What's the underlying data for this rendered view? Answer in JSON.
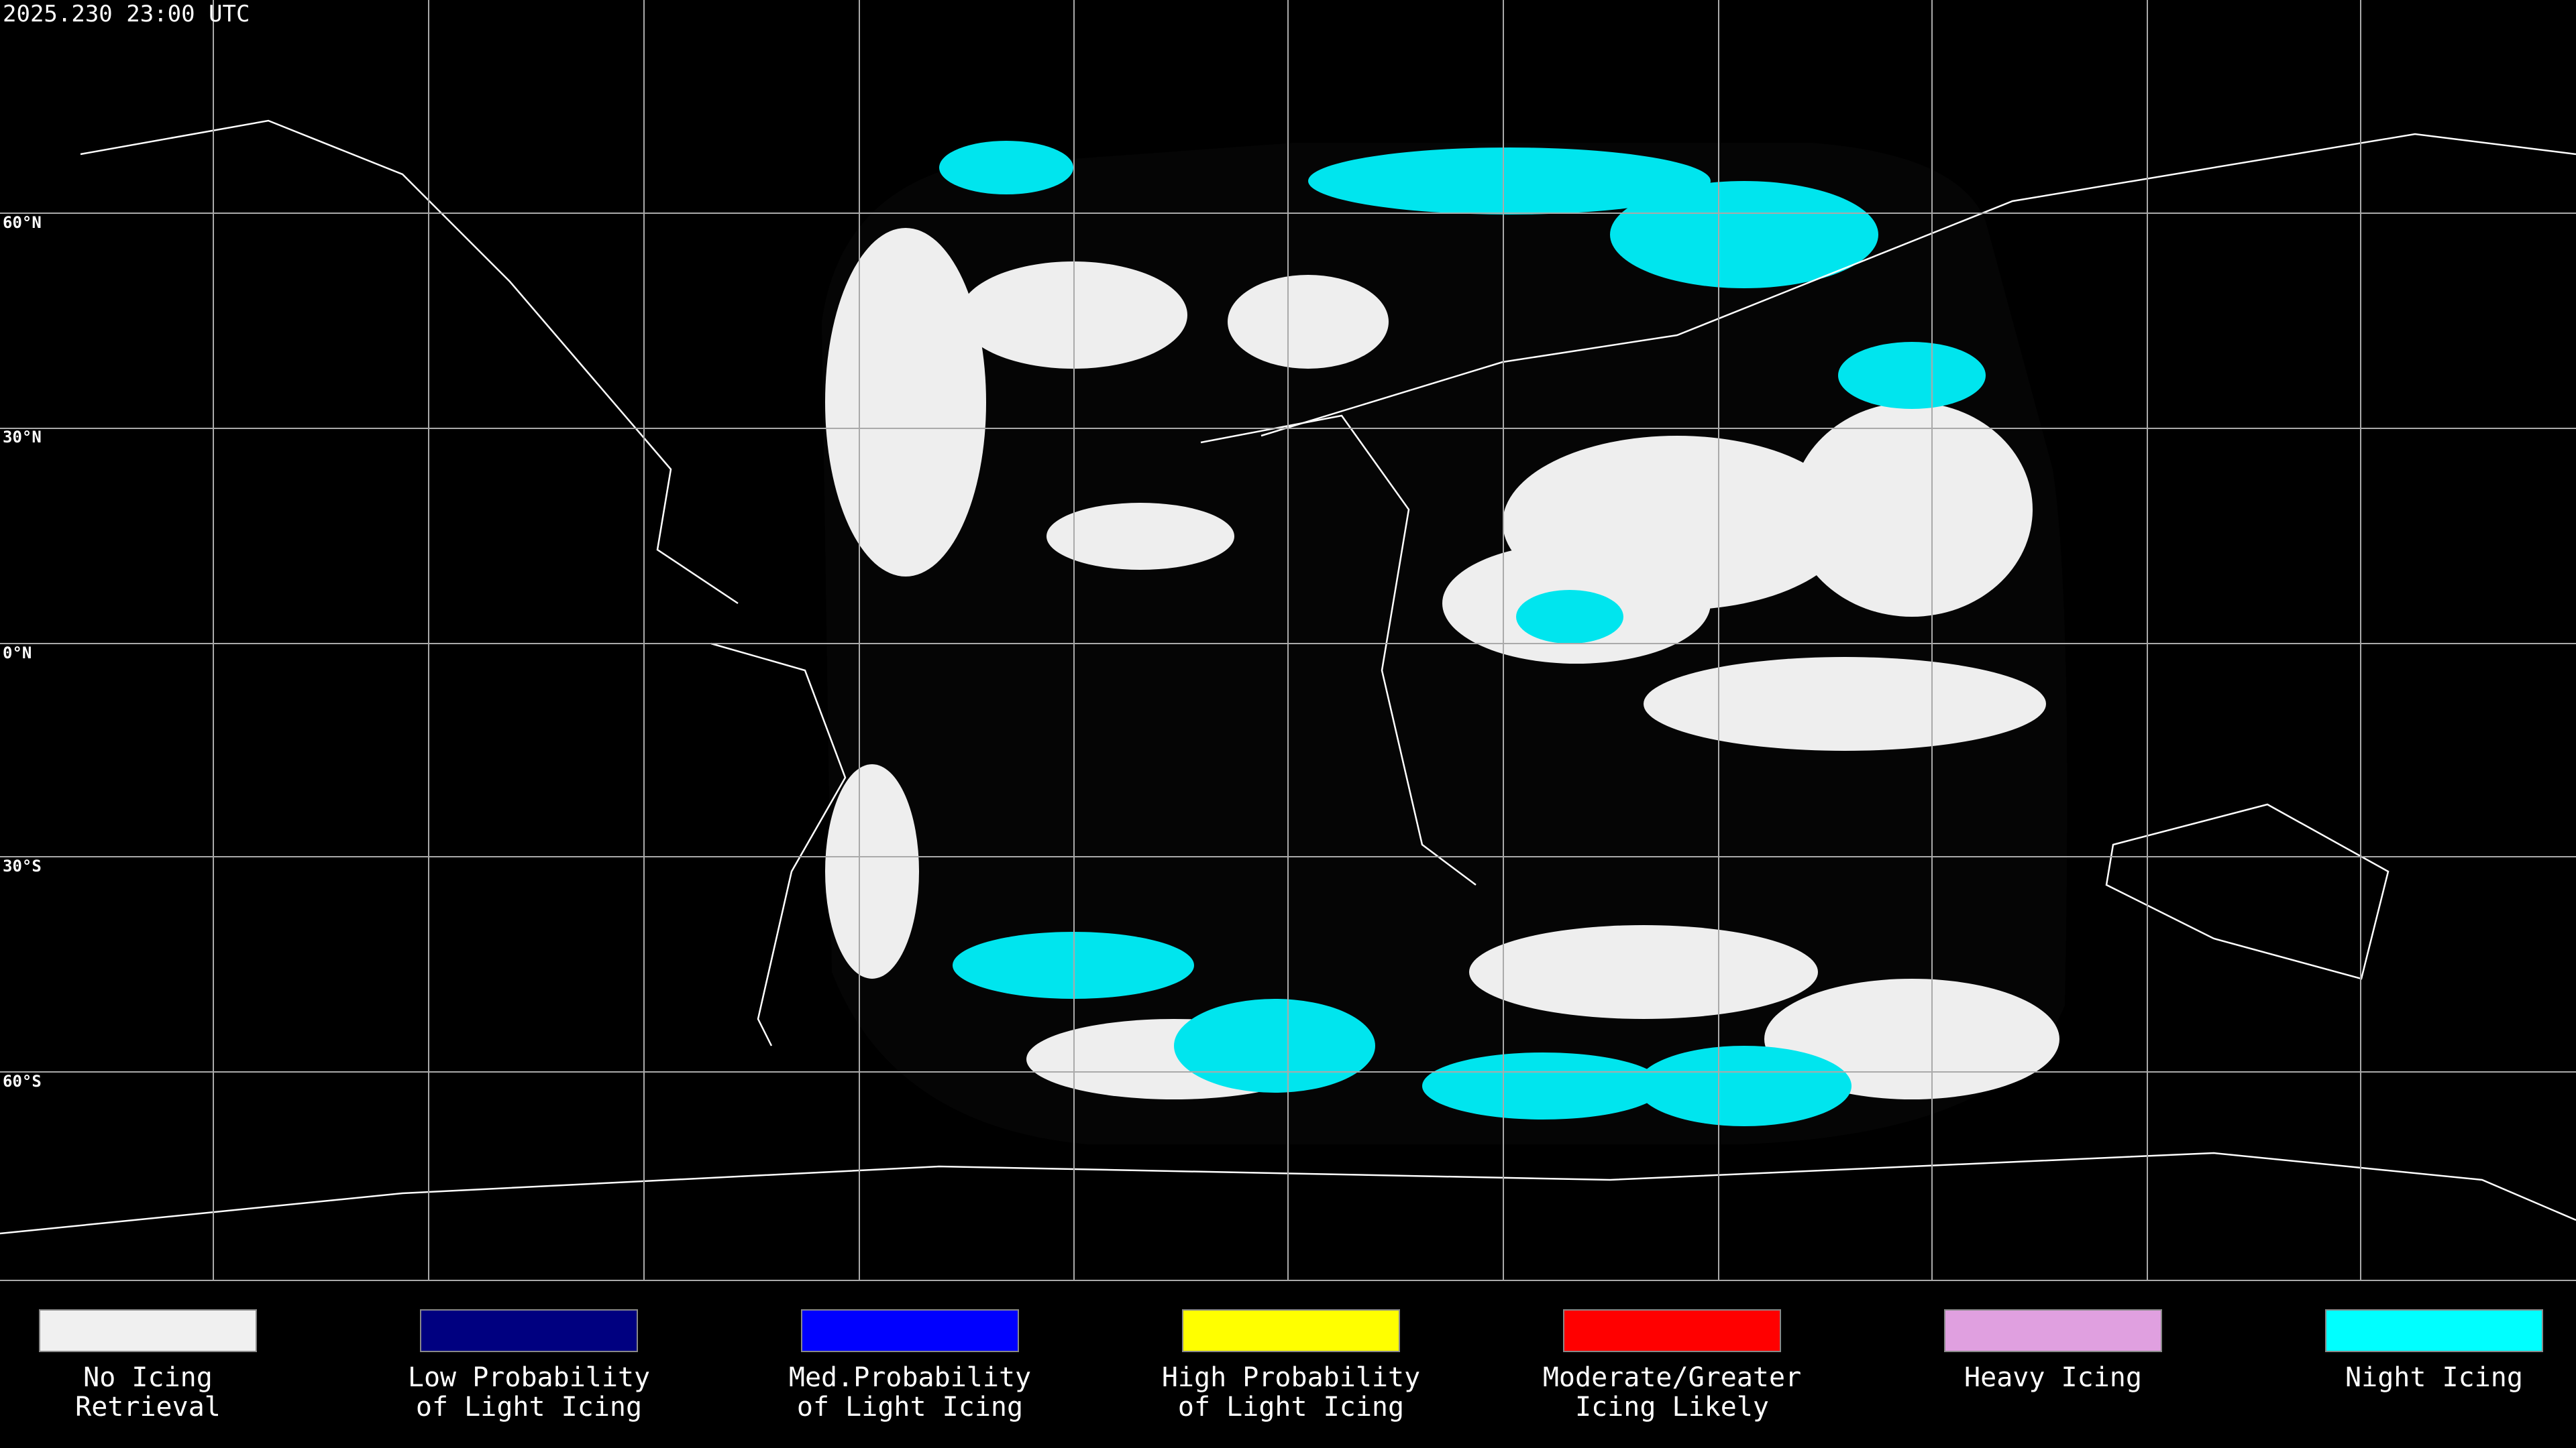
{
  "header": {
    "timestamp": "2025.230 23:00 UTC"
  },
  "latitude_labels": [
    "60°N",
    "30°N",
    "0°N",
    "30°S",
    "60°S"
  ],
  "legend": [
    {
      "lines": [
        "No Icing",
        "Retrieval"
      ],
      "color": "#f0f0f0"
    },
    {
      "lines": [
        "Low Probability",
        "of Light Icing"
      ],
      "color": "#000080"
    },
    {
      "lines": [
        "Med.Probability",
        "of Light Icing"
      ],
      "color": "#0000ff"
    },
    {
      "lines": [
        "High Probability",
        "of Light Icing"
      ],
      "color": "#ffff00"
    },
    {
      "lines": [
        "Moderate/Greater",
        "Icing Likely"
      ],
      "color": "#ff0000"
    },
    {
      "lines": [
        "Heavy Icing"
      ],
      "color": "#e0a0e0"
    },
    {
      "lines": [
        "Night Icing"
      ],
      "color": "#00ffff"
    }
  ]
}
